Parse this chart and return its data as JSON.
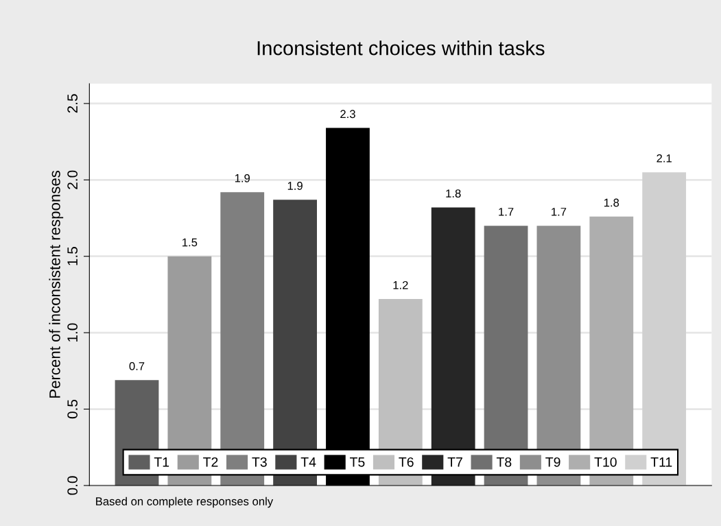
{
  "chart_data": {
    "type": "bar",
    "title": "Inconsistent choices within tasks",
    "ylabel": "Percent of inconsistent responses",
    "annotations": [
      "Based on complete responses only"
    ],
    "categories": [
      null
    ],
    "series": [
      {
        "name": "T1",
        "color": "#5f5f5f",
        "values": [
          0.69
        ],
        "value_labels": [
          "0.7"
        ]
      },
      {
        "name": "T2",
        "color": "#9c9c9c",
        "values": [
          1.5
        ],
        "value_labels": [
          "1.5"
        ]
      },
      {
        "name": "T3",
        "color": "#7f7f7f",
        "values": [
          1.92
        ],
        "value_labels": [
          "1.9"
        ]
      },
      {
        "name": "T4",
        "color": "#434343",
        "values": [
          1.87
        ],
        "value_labels": [
          "1.9"
        ]
      },
      {
        "name": "T5",
        "color": "#000000",
        "values": [
          2.34
        ],
        "value_labels": [
          "2.3"
        ]
      },
      {
        "name": "T6",
        "color": "#bfbfbf",
        "values": [
          1.22
        ],
        "value_labels": [
          "1.2"
        ]
      },
      {
        "name": "T7",
        "color": "#262626",
        "values": [
          1.82
        ],
        "value_labels": [
          "1.8"
        ]
      },
      {
        "name": "T8",
        "color": "#707070",
        "values": [
          1.7
        ],
        "value_labels": [
          "1.7"
        ]
      },
      {
        "name": "T9",
        "color": "#8e8e8e",
        "values": [
          1.7
        ],
        "value_labels": [
          "1.7"
        ]
      },
      {
        "name": "T10",
        "color": "#aeaeae",
        "values": [
          1.76
        ],
        "value_labels": [
          "1.8"
        ]
      },
      {
        "name": "T11",
        "color": "#d0d0d0",
        "values": [
          2.05
        ],
        "value_labels": [
          "2.1"
        ]
      }
    ],
    "ylim": [
      0,
      2.63
    ],
    "yticks": [
      {
        "value": 0,
        "label": "0.0"
      },
      {
        "value": 0.5,
        "label": "0.5"
      },
      {
        "value": 1,
        "label": "1.0"
      },
      {
        "value": 1.5,
        "label": "1.5"
      },
      {
        "value": 2,
        "label": "2.0"
      },
      {
        "value": 2.5,
        "label": "2.5"
      }
    ],
    "grid": "y",
    "legend": "bottom"
  }
}
